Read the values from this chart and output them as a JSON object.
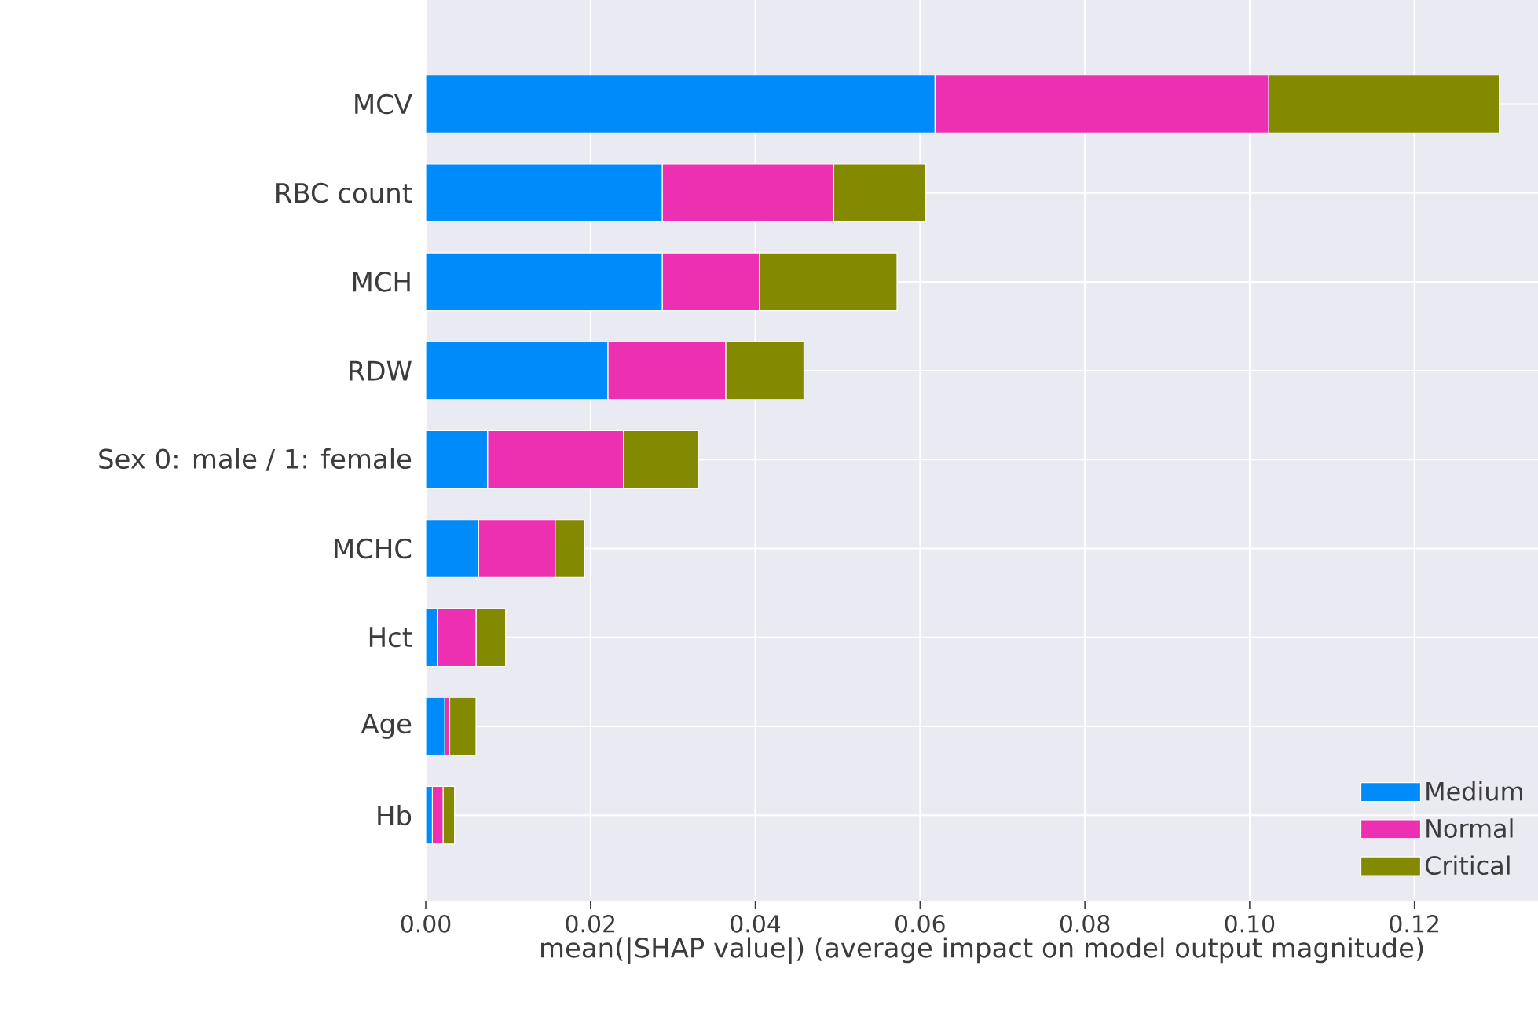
{
  "chart_data": {
    "type": "bar",
    "orientation": "horizontal",
    "stacked": true,
    "xlabel": "mean(|SHAP value|) (average impact on model output magnitude)",
    "categories": [
      "MCV",
      "RBC count",
      "MCH",
      "RDW",
      "Sex 0: male / 1: female",
      "MCHC",
      "Hct",
      "Age",
      "Hb"
    ],
    "series": [
      {
        "name": "Medium",
        "color": "#008bfb",
        "values": [
          0.0618,
          0.0287,
          0.0287,
          0.0221,
          0.0075,
          0.0064,
          0.0014,
          0.0023,
          0.0008
        ]
      },
      {
        "name": "Normal",
        "color": "#ed2fb1",
        "values": [
          0.0405,
          0.0208,
          0.0118,
          0.0143,
          0.0165,
          0.0093,
          0.0047,
          0.0006,
          0.0013
        ]
      },
      {
        "name": "Critical",
        "color": "#848a00",
        "values": [
          0.028,
          0.0112,
          0.0167,
          0.0095,
          0.0091,
          0.0036,
          0.0036,
          0.0032,
          0.0014
        ]
      }
    ],
    "xlim": [
      0,
      0.135
    ],
    "xticks": [
      {
        "value": 0,
        "label": "0.00"
      },
      {
        "value": 0.02,
        "label": "0.02"
      },
      {
        "value": 0.04,
        "label": "0.04"
      },
      {
        "value": 0.06,
        "label": "0.06"
      },
      {
        "value": 0.08,
        "label": "0.08"
      },
      {
        "value": 0.1,
        "label": "0.10"
      },
      {
        "value": 0.12,
        "label": "0.12"
      }
    ],
    "grid": true,
    "legend": "bottom right"
  }
}
